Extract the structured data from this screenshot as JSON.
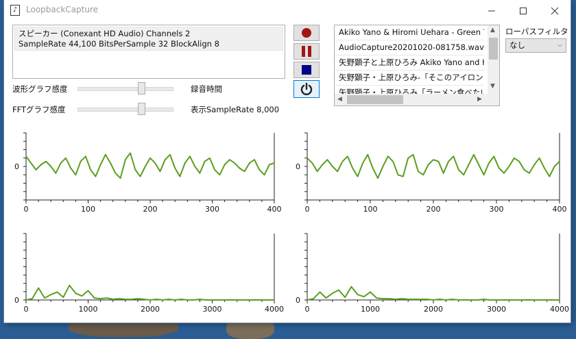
{
  "window": {
    "title": "LoopbackCapture"
  },
  "device_info": {
    "line1": "スピーカー (Conexant HD Audio) Channels 2",
    "line2": "SampleRate 44,100 BitsPerSample 32 BlockAlign 8"
  },
  "controls": {
    "wave_sensitivity_label": "波形グラフ感度",
    "fft_sensitivity_label": "FFTグラフ感度",
    "recording_time_label": "録音時間",
    "display_samplerate_label": "表示SampleRate 8,000",
    "wave_sensitivity_level": 0.68,
    "fft_sensitivity_level": 0.68
  },
  "buttons": {
    "record_icon": "record-icon",
    "pause_icon": "pause-icon",
    "stop_icon": "stop-icon",
    "power_icon": "power-icon"
  },
  "file_list": {
    "items": [
      "Akiko Yano & Hiromi Uehara - Green Tea",
      "AudioCapture20201020-081758.wav",
      "矢野顕子と上原ひろみ Akiko Yano and Hiromi",
      "矢野顕子・上原ひろみ-「そこのアイロンに告ぐ」",
      "矢野顕子・上原ひろみ「ラーメン食べたい」ライブ"
    ]
  },
  "lowpass": {
    "label": "ローパスフィルタ",
    "value": "なし"
  },
  "colors": {
    "waveform": "#5a9e1e",
    "record": "#a31515",
    "pause": "#a31515",
    "stop": "#00008b",
    "power": "#222222"
  },
  "chart_data": [
    {
      "type": "line",
      "id": "wave-left",
      "x_ticks": [
        "0",
        "100",
        "200",
        "300",
        "400"
      ],
      "y_ticks": [
        "0"
      ],
      "xlim": [
        0,
        400
      ],
      "ylim": [
        -1,
        1
      ],
      "series": [
        {
          "values": [
            0.3,
            0.1,
            -0.1,
            0.05,
            0.15,
            0.0,
            -0.2,
            0.1,
            0.25,
            -0.05,
            -0.25,
            0.15,
            0.3,
            -0.1,
            -0.3,
            0.05,
            0.35,
            0.1,
            -0.2,
            -0.35,
            0.2,
            0.4,
            -0.1,
            -0.3,
            0.0,
            0.25,
            0.1,
            -0.15,
            0.2,
            0.35,
            -0.05,
            -0.3,
            0.1,
            0.3,
            0.0,
            -0.2,
            0.15,
            0.25,
            -0.1,
            -0.25,
            0.05,
            0.2,
            0.1,
            -0.05,
            -0.15,
            0.1,
            0.2,
            -0.1,
            -0.25,
            0.05,
            0.1
          ]
        }
      ]
    },
    {
      "type": "line",
      "id": "wave-right",
      "x_ticks": [
        "0",
        "100",
        "200",
        "300",
        "400"
      ],
      "y_ticks": [
        "0"
      ],
      "xlim": [
        0,
        400
      ],
      "ylim": [
        -1,
        1
      ],
      "series": [
        {
          "values": [
            0.25,
            0.1,
            -0.15,
            0.05,
            0.2,
            0.0,
            -0.15,
            0.15,
            0.3,
            -0.05,
            -0.3,
            0.1,
            0.35,
            -0.05,
            -0.35,
            0.0,
            0.3,
            0.15,
            -0.25,
            -0.3,
            0.25,
            0.35,
            -0.15,
            -0.25,
            0.05,
            0.2,
            0.15,
            -0.2,
            0.15,
            0.3,
            -0.1,
            -0.25,
            0.05,
            0.35,
            0.05,
            -0.25,
            0.1,
            0.3,
            -0.05,
            -0.2,
            0.0,
            0.25,
            0.15,
            -0.1,
            -0.2,
            0.05,
            0.25,
            -0.05,
            -0.3,
            0.0,
            0.15
          ]
        }
      ]
    },
    {
      "type": "line",
      "id": "fft-left",
      "x_ticks": [
        "0",
        "1000",
        "2000",
        "3000",
        "4000"
      ],
      "y_ticks": [
        "0"
      ],
      "xlim": [
        0,
        4000
      ],
      "ylim": [
        0,
        1
      ],
      "series": [
        {
          "values": [
            0,
            0.02,
            0.18,
            0.03,
            0.08,
            0.12,
            0.04,
            0.22,
            0.1,
            0.06,
            0.14,
            0.03,
            0.02,
            0.03,
            0.01,
            0.02,
            0.01,
            0.01,
            0.02,
            0.01,
            0.0,
            0.01,
            0.0,
            0.01,
            0.0,
            0.01,
            0.0,
            0.0,
            0.01,
            0.0,
            0.0,
            0.0,
            0.0,
            0.0,
            0.0,
            0.0,
            0.0,
            0.0,
            0.0,
            0.0,
            0.0
          ]
        }
      ]
    },
    {
      "type": "line",
      "id": "fft-right",
      "x_ticks": [
        "0",
        "1000",
        "2000",
        "3000",
        "4000"
      ],
      "y_ticks": [
        "0"
      ],
      "xlim": [
        0,
        4000
      ],
      "ylim": [
        0,
        1
      ],
      "series": [
        {
          "values": [
            0,
            0.02,
            0.12,
            0.03,
            0.1,
            0.15,
            0.04,
            0.2,
            0.08,
            0.05,
            0.12,
            0.03,
            0.02,
            0.02,
            0.01,
            0.02,
            0.01,
            0.01,
            0.01,
            0.01,
            0.0,
            0.01,
            0.0,
            0.01,
            0.0,
            0.0,
            0.0,
            0.0,
            0.01,
            0.0,
            0.0,
            0.0,
            0.0,
            0.0,
            0.0,
            0.0,
            0.0,
            0.0,
            0.0,
            0.0,
            0.0
          ]
        }
      ]
    }
  ]
}
